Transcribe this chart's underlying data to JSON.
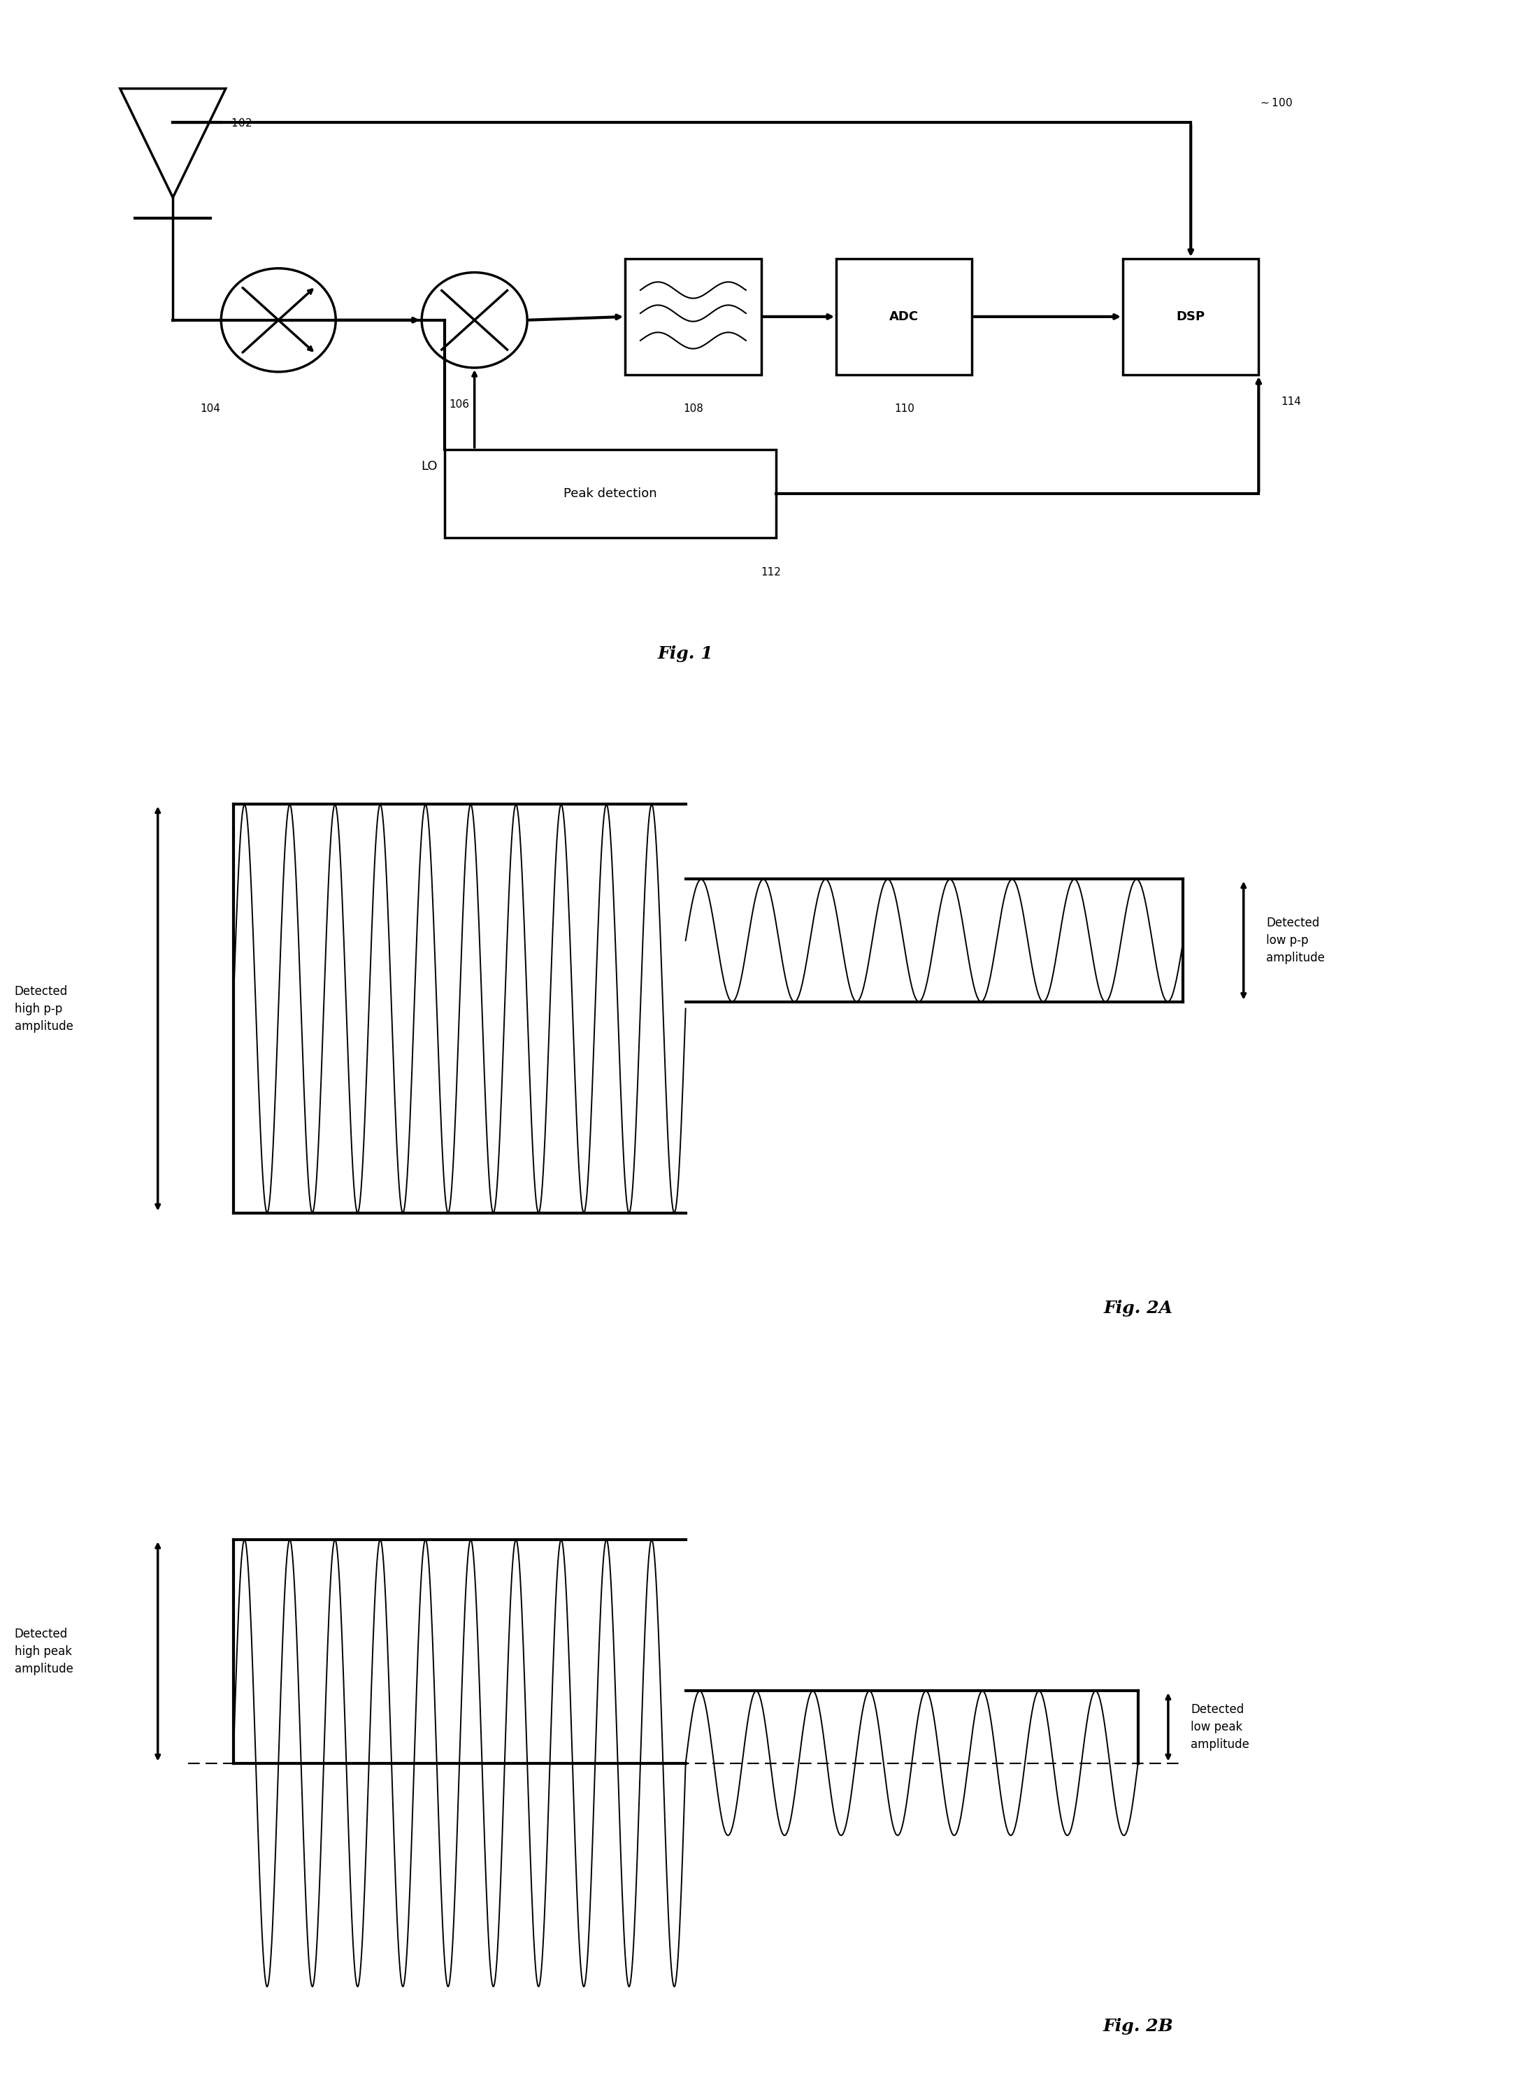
{
  "fig_width": 21.57,
  "fig_height": 30.43,
  "bg_color": "#ffffff",
  "line_color": "#000000",
  "fig1": {
    "title": "Fig. 1",
    "ref_100": "100",
    "ref_102": "102",
    "ref_104": "104",
    "ref_106": "106",
    "ref_108": "108",
    "ref_110": "110",
    "ref_112": "112",
    "ref_114": "114",
    "lo_label": "LO",
    "adc_label": "ADC",
    "dsp_label": "DSP",
    "peak_label": "Peak detection"
  },
  "fig2a": {
    "title": "Fig. 2A",
    "label_high": "Detected\nhigh p-p\namplitude",
    "label_low": "Detected\nlow p-p\namplitude"
  },
  "fig2b": {
    "title": "Fig. 2B",
    "label_high": "Detected\nhigh peak\namplitude",
    "label_low": "Detected\nlow peak\namplitude"
  }
}
